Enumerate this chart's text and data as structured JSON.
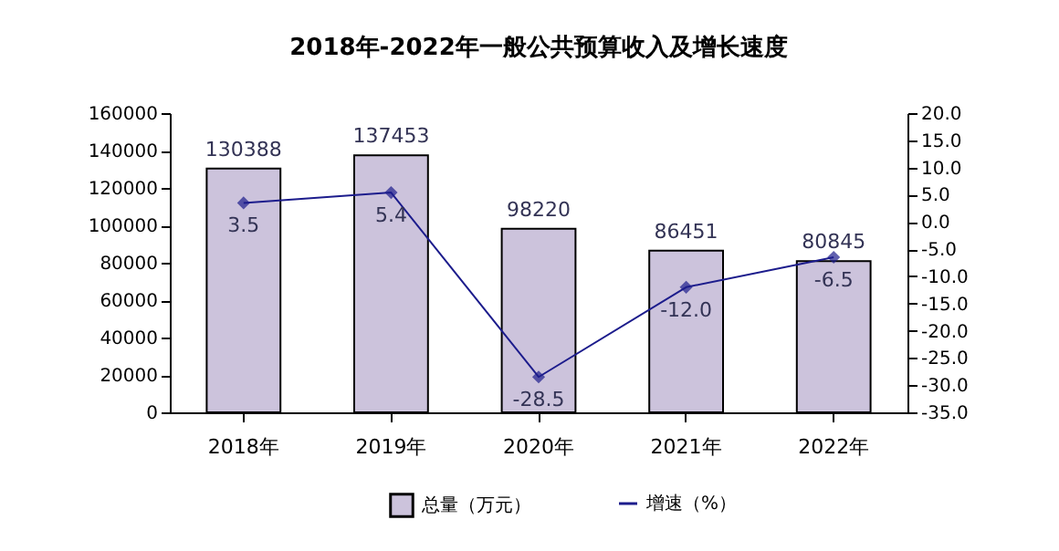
{
  "chart_data": {
    "type": "bar",
    "title": "2018年-2022年一般公共预算收入及增长速度",
    "categories": [
      "2018年",
      "2019年",
      "2020年",
      "2021年",
      "2022年"
    ],
    "series": [
      {
        "name": "总量（万元）",
        "color": "#ccc3dc",
        "values": [
          130388,
          137453,
          98220,
          86451,
          80845
        ],
        "value_labels": [
          "130388",
          "137453",
          "98220",
          "86451",
          "80845"
        ]
      },
      {
        "name": "增速（%）",
        "type": "line",
        "axis": "y2",
        "color": "#1c1c8c",
        "marker": "diamond",
        "values": [
          3.5,
          5.4,
          -28.5,
          -12.0,
          -6.5
        ],
        "value_labels": [
          "3.5",
          "5.4",
          "-28.5",
          "-12.0",
          "-6.5"
        ]
      }
    ],
    "ylim": [
      0,
      160000
    ],
    "yticks": [
      0,
      20000,
      40000,
      60000,
      80000,
      100000,
      120000,
      140000,
      160000
    ],
    "y2lim": [
      -35,
      20
    ],
    "y2ticks": [
      {
        "value": -35,
        "label": "-35.0"
      },
      {
        "value": -30,
        "label": "-30.0"
      },
      {
        "value": -25,
        "label": "-25.0"
      },
      {
        "value": -20,
        "label": "-20.0"
      },
      {
        "value": -15,
        "label": "-15.0"
      },
      {
        "value": -10,
        "label": "-10.0"
      },
      {
        "value": -5,
        "label": "-5.0"
      },
      {
        "value": 0,
        "label": "0.0"
      },
      {
        "value": 5,
        "label": "5.0"
      },
      {
        "value": 10,
        "label": "10.0"
      },
      {
        "value": 15,
        "label": "15.0"
      },
      {
        "value": 20,
        "label": "20.0"
      }
    ],
    "legend": "bottom",
    "grid": false
  }
}
